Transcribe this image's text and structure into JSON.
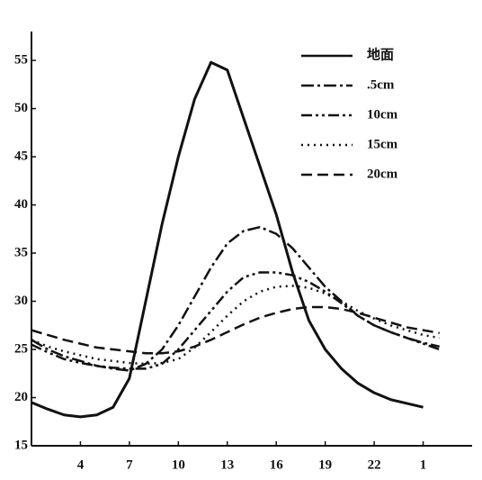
{
  "chart_data": {
    "type": "line",
    "x": [
      1,
      2,
      3,
      4,
      5,
      6,
      7,
      8,
      9,
      10,
      11,
      12,
      13,
      14,
      15,
      16,
      17,
      18,
      19,
      20,
      21,
      22,
      23,
      24,
      25,
      26
    ],
    "xlim": [
      1,
      28
    ],
    "xticks": [
      4,
      7,
      10,
      13,
      16,
      19,
      22,
      {
        "value": 25,
        "label": "1"
      }
    ],
    "ylim": [
      15,
      58
    ],
    "yticks": [
      15,
      20,
      25,
      30,
      35,
      40,
      45,
      50,
      55
    ],
    "legend": "upper right",
    "series": [
      {
        "name": "地面",
        "color": "#111",
        "dash": "solid",
        "values": [
          19.5,
          18.8,
          18.2,
          18,
          18.2,
          19,
          22,
          30,
          38,
          45,
          51,
          54.8,
          54,
          49,
          44,
          39,
          33,
          28,
          25,
          23,
          21.5,
          20.5,
          19.8,
          19.4,
          19,
          null
        ]
      },
      {
        "name": ".5cm",
        "color": "#111",
        "dash": "dashdot",
        "values": [
          26,
          25,
          24.3,
          23.8,
          23.3,
          23,
          22.8,
          23.5,
          25,
          27.5,
          30.5,
          33.5,
          36,
          37.3,
          37.7,
          37,
          35.5,
          33.5,
          31.5,
          30,
          28.5,
          27.5,
          26.8,
          26.2,
          25.7,
          25.3
        ]
      },
      {
        "name": "10cm",
        "color": "#111",
        "dash": "dashdotdot",
        "values": [
          25.5,
          24.7,
          24,
          23.6,
          23.3,
          23.1,
          23,
          23,
          23.5,
          25,
          27,
          29,
          31,
          32.5,
          33,
          33,
          32.7,
          32,
          31,
          29.8,
          28.5,
          27.5,
          26.8,
          26.2,
          25.6,
          25
        ]
      },
      {
        "name": "15cm",
        "color": "#111",
        "dash": "dotted",
        "values": [
          26,
          25.3,
          24.8,
          24.4,
          24,
          23.8,
          23.6,
          23.5,
          23.6,
          24,
          25.2,
          26.8,
          28.5,
          30,
          31,
          31.5,
          31.6,
          31.4,
          30.8,
          30,
          29,
          28.2,
          27.5,
          27,
          26.5,
          26.2
        ]
      },
      {
        "name": "20cm",
        "color": "#111",
        "dash": "dashed",
        "values": [
          27,
          26.5,
          26,
          25.6,
          25.2,
          25,
          24.8,
          24.6,
          24.6,
          24.8,
          25.3,
          26,
          26.8,
          27.6,
          28.3,
          28.8,
          29.2,
          29.4,
          29.4,
          29.2,
          28.8,
          28.3,
          27.8,
          27.3,
          27,
          26.7
        ]
      }
    ]
  }
}
